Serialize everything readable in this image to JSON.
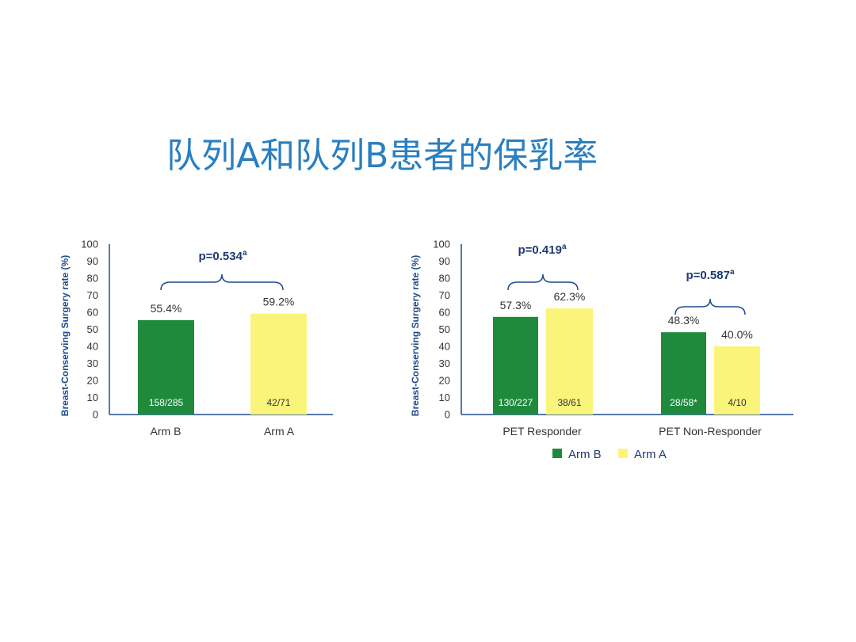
{
  "title": "队列A和队列B患者的保乳率",
  "colors": {
    "arm_b": "#1f8a3c",
    "arm_a": "#faf57a",
    "axis": "#1e4b8a"
  },
  "legend": [
    {
      "label": "Arm B",
      "color": "#1f8a3c"
    },
    {
      "label": "Arm A",
      "color": "#faf57a"
    }
  ],
  "chart_data": [
    {
      "type": "bar",
      "ylabel": "Breast-Conserving Surgery rate (%)",
      "ylim": [
        0,
        100
      ],
      "yticks": [
        0,
        10,
        20,
        30,
        40,
        50,
        60,
        70,
        80,
        90,
        100
      ],
      "categories": [
        "Arm B",
        "Arm A"
      ],
      "values": [
        55.4,
        59.2
      ],
      "value_labels": [
        "55.4%",
        "59.2%"
      ],
      "counts": [
        "158/285",
        "42/71"
      ],
      "p_values": [
        {
          "text": "p=0.534",
          "sup": "a"
        }
      ]
    },
    {
      "type": "bar",
      "ylabel": "Breast-Conserving Surgery rate (%)",
      "ylim": [
        0,
        100
      ],
      "yticks": [
        0,
        10,
        20,
        30,
        40,
        50,
        60,
        70,
        80,
        90,
        100
      ],
      "categories": [
        "PET Responder",
        "PET Non-Responder"
      ],
      "series": [
        {
          "name": "Arm B",
          "values": [
            57.3,
            48.3
          ],
          "value_labels": [
            "57.3%",
            "48.3%"
          ],
          "counts": [
            "130/227",
            "28/58*"
          ]
        },
        {
          "name": "Arm A",
          "values": [
            62.3,
            40.0
          ],
          "value_labels": [
            "62.3%",
            "40.0%"
          ],
          "counts": [
            "38/61",
            "4/10"
          ]
        }
      ],
      "p_values": [
        {
          "text": "p=0.419",
          "sup": "a"
        },
        {
          "text": "p=0.587",
          "sup": "a"
        }
      ]
    }
  ]
}
